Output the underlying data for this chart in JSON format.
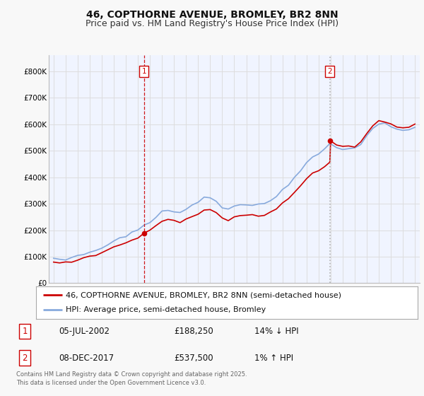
{
  "title": "46, COPTHORNE AVENUE, BROMLEY, BR2 8NN",
  "subtitle": "Price paid vs. HM Land Registry's House Price Index (HPI)",
  "ylim": [
    0,
    860000
  ],
  "yticks": [
    0,
    100000,
    200000,
    300000,
    400000,
    500000,
    600000,
    700000,
    800000
  ],
  "ytick_labels": [
    "£0",
    "£100K",
    "£200K",
    "£300K",
    "£400K",
    "£500K",
    "£600K",
    "£700K",
    "£800K"
  ],
  "line1_color": "#cc0000",
  "line2_color": "#88aadd",
  "vline1_color": "#cc0000",
  "vline1_style": "--",
  "vline2_color": "#aaaaaa",
  "vline2_style": ":",
  "marker1_date": 2002.51,
  "marker2_date": 2017.93,
  "marker1_price": 188250,
  "marker2_price": 537500,
  "legend_label1": "46, COPTHORNE AVENUE, BROMLEY, BR2 8NN (semi-detached house)",
  "legend_label2": "HPI: Average price, semi-detached house, Bromley",
  "ann1_box": "1",
  "ann2_box": "2",
  "ann1_date": "05-JUL-2002",
  "ann1_price": "£188,250",
  "ann1_hpi": "14% ↓ HPI",
  "ann2_date": "08-DEC-2017",
  "ann2_price": "£537,500",
  "ann2_hpi": "1% ↑ HPI",
  "footer": "Contains HM Land Registry data © Crown copyright and database right 2025.\nThis data is licensed under the Open Government Licence v3.0.",
  "bg_color": "#f8f8f8",
  "plot_bg_color": "#f0f4ff",
  "grid_color": "#dddddd",
  "title_fontsize": 10,
  "subtitle_fontsize": 9,
  "tick_fontsize": 7.5,
  "legend_fontsize": 8,
  "ann_fontsize": 8.5,
  "footer_fontsize": 6
}
